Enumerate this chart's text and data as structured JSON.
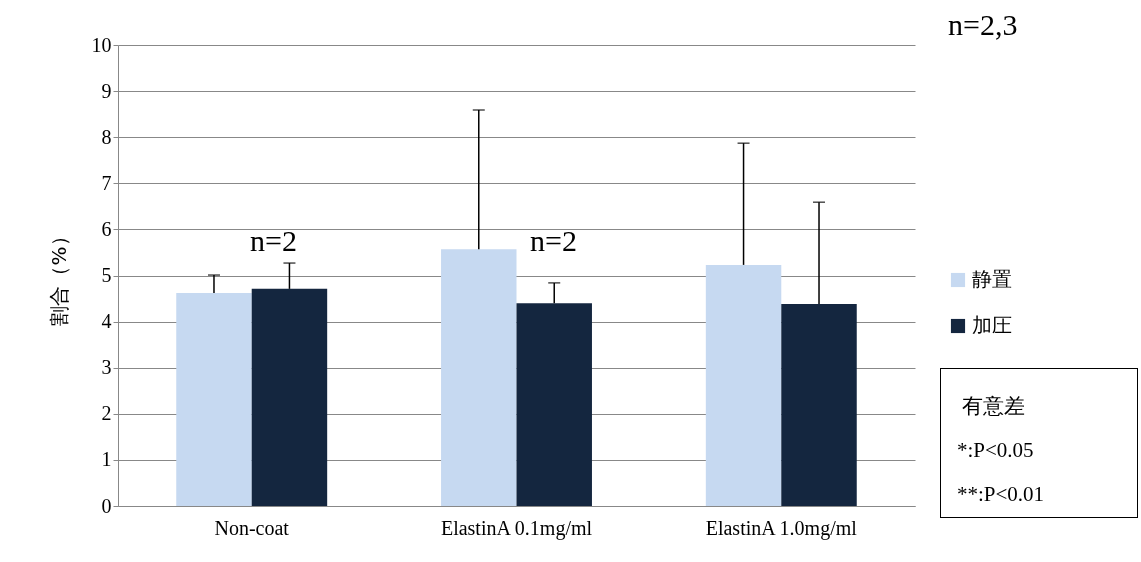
{
  "chart_data": {
    "type": "bar",
    "ylabel": "割合（%）",
    "categories": [
      "Non-coat",
      "ElastinA 0.1mg/ml",
      "ElastinA 1.0mg/ml"
    ],
    "series": [
      {
        "name": "静置",
        "color": "#c6d9f1",
        "values": [
          4.62,
          5.57,
          5.23
        ],
        "errors": [
          [
            4.62,
            5.01
          ],
          [
            5.57,
            8.59
          ],
          [
            5.23,
            7.87
          ]
        ]
      },
      {
        "name": "加圧",
        "color": "#14263f",
        "values": [
          4.71,
          4.4,
          4.38
        ],
        "errors": [
          [
            4.71,
            5.27
          ],
          [
            4.4,
            4.84
          ],
          [
            4.38,
            6.59
          ]
        ]
      }
    ],
    "ylim": [
      0,
      10
    ],
    "yticks": [
      0,
      1,
      2,
      3,
      4,
      5,
      6,
      7,
      8,
      9,
      10
    ],
    "grid": "y",
    "legend": "right",
    "annotations": [
      "n=2,3",
      "n=2",
      "n=2",
      "有意差",
      "*:P<0.05",
      "**:P<0.01"
    ]
  }
}
